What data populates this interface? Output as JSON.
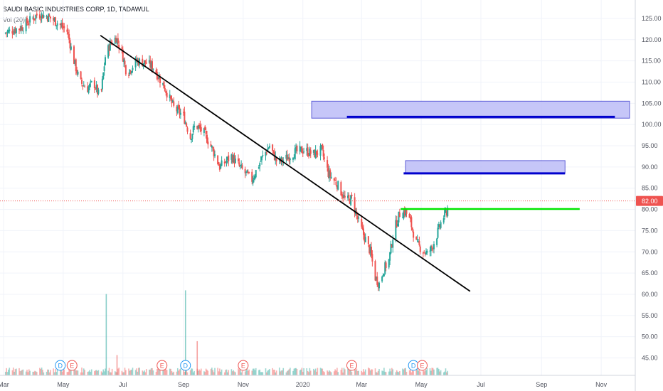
{
  "legend": {
    "title": "SAUDI BASIC INDUSTRIES CORP, 1D, TADAWUL",
    "volume_label": "Vol (20)"
  },
  "colors": {
    "up": "#26a69a",
    "down": "#ef5350",
    "trendline": "#000000",
    "zone_fill": "#bdbdf7",
    "zone_border": "#3f3fd0",
    "zone_line": "#0000cd",
    "resistance": "#00e600",
    "price_line": "#ef5350",
    "grid": "#f0f3fa",
    "axis_text": "#50535e"
  },
  "chart_data": {
    "type": "candlestick",
    "title": "SAUDI BASIC INDUSTRIES CORP, 1D, TADAWUL",
    "last_price": 82.0,
    "last_price_label": "82.00",
    "y_range": [
      40.5,
      127.5
    ],
    "y_ticks": [
      "125.00",
      "120.00",
      "115.00",
      "110.00",
      "105.00",
      "100.00",
      "95.00",
      "90.00",
      "85.00",
      "80.00",
      "75.00",
      "70.00",
      "65.00",
      "60.00",
      "55.00",
      "50.00",
      "45.00"
    ],
    "x_range": [
      "2019-03-01",
      "2020-11-30"
    ],
    "x_ticks": [
      {
        "label": "Mar",
        "date": "2019-03-01"
      },
      {
        "label": "May",
        "date": "2019-05-01"
      },
      {
        "label": "Jul",
        "date": "2019-07-01"
      },
      {
        "label": "Sep",
        "date": "2019-09-01"
      },
      {
        "label": "Nov",
        "date": "2019-11-01"
      },
      {
        "label": "2020",
        "date": "2020-01-01"
      },
      {
        "label": "Mar",
        "date": "2020-03-01"
      },
      {
        "label": "May",
        "date": "2020-05-01"
      },
      {
        "label": "Jul",
        "date": "2020-07-01"
      },
      {
        "label": "Sep",
        "date": "2020-09-01"
      },
      {
        "label": "Nov",
        "date": "2020-11-01"
      }
    ],
    "price_path": [
      [
        "2019-03-01",
        121.5
      ],
      [
        "2019-03-20",
        123.0
      ],
      [
        "2019-04-05",
        126.0
      ],
      [
        "2019-04-15",
        125.5
      ],
      [
        "2019-04-25",
        124.0
      ],
      [
        "2019-05-05",
        122.0
      ],
      [
        "2019-05-12",
        115.0
      ],
      [
        "2019-05-18",
        110.0
      ],
      [
        "2019-05-26",
        108.5
      ],
      [
        "2019-06-01",
        110.0
      ],
      [
        "2019-06-08",
        106.0
      ],
      [
        "2019-06-13",
        116.0
      ],
      [
        "2019-06-18",
        119.0
      ],
      [
        "2019-06-24",
        120.5
      ],
      [
        "2019-06-30",
        117.0
      ],
      [
        "2019-07-05",
        112.0
      ],
      [
        "2019-07-15",
        115.0
      ],
      [
        "2019-07-25",
        114.5
      ],
      [
        "2019-08-01",
        113.5
      ],
      [
        "2019-08-12",
        109.0
      ],
      [
        "2019-08-22",
        104.0
      ],
      [
        "2019-09-01",
        102.0
      ],
      [
        "2019-09-08",
        97.0
      ],
      [
        "2019-09-13",
        100.0
      ],
      [
        "2019-09-22",
        98.0
      ],
      [
        "2019-10-01",
        94.0
      ],
      [
        "2019-10-08",
        90.0
      ],
      [
        "2019-10-20",
        92.5
      ],
      [
        "2019-11-01",
        89.0
      ],
      [
        "2019-11-10",
        87.0
      ],
      [
        "2019-11-20",
        92.0
      ],
      [
        "2019-11-28",
        95.0
      ],
      [
        "2019-12-06",
        91.0
      ],
      [
        "2019-12-15",
        92.0
      ],
      [
        "2019-12-24",
        93.5
      ],
      [
        "2020-01-02",
        94.0
      ],
      [
        "2020-01-12",
        93.0
      ],
      [
        "2020-01-20",
        94.0
      ],
      [
        "2020-01-27",
        88.5
      ],
      [
        "2020-02-05",
        86.0
      ],
      [
        "2020-02-14",
        82.0
      ],
      [
        "2020-02-20",
        82.5
      ],
      [
        "2020-02-27",
        77.0
      ],
      [
        "2020-03-04",
        73.5
      ],
      [
        "2020-03-10",
        70.0
      ],
      [
        "2020-03-15",
        64.0
      ],
      [
        "2020-03-19",
        62.5
      ],
      [
        "2020-03-24",
        66.0
      ],
      [
        "2020-03-29",
        68.0
      ],
      [
        "2020-04-03",
        75.0
      ],
      [
        "2020-04-09",
        79.0
      ],
      [
        "2020-04-15",
        79.5
      ],
      [
        "2020-04-20",
        77.0
      ],
      [
        "2020-04-26",
        72.0
      ],
      [
        "2020-05-02",
        70.5
      ],
      [
        "2020-05-07",
        69.5
      ],
      [
        "2020-05-12",
        71.0
      ],
      [
        "2020-05-17",
        74.0
      ],
      [
        "2020-05-22",
        77.5
      ],
      [
        "2020-05-27",
        79.5
      ],
      [
        "2020-05-30",
        82.0
      ]
    ],
    "volume_spikes": [
      {
        "date": "2019-06-14",
        "rel": 0.88
      },
      {
        "date": "2019-06-25",
        "rel": 0.22
      },
      {
        "date": "2019-09-03",
        "rel": 0.92
      },
      {
        "date": "2019-09-15",
        "rel": 0.37
      }
    ],
    "trendline": {
      "from": [
        "2019-06-08",
        121.0
      ],
      "to": [
        "2020-06-20",
        60.7
      ]
    },
    "zones": [
      {
        "from": "2020-01-10",
        "to": "2020-11-30",
        "top": 105.5,
        "bottom": 101.5
      },
      {
        "from": "2020-04-15",
        "to": "2020-09-25",
        "top": 91.5,
        "bottom": 88.5
      }
    ],
    "zone_lines": [
      {
        "from": "2020-02-15",
        "to": "2020-11-15",
        "y": 101.8
      },
      {
        "from": "2020-04-13",
        "to": "2020-09-25",
        "y": 88.5
      }
    ],
    "resistance_line": {
      "from": "2020-04-10",
      "to": "2020-10-10",
      "y": 80.1
    },
    "events": [
      {
        "label": "D",
        "date": "2019-04-28",
        "color": "#2196f3"
      },
      {
        "label": "E",
        "date": "2019-05-10",
        "color": "#ef5350"
      },
      {
        "label": "E",
        "date": "2019-08-10",
        "color": "#ef5350"
      },
      {
        "label": "D",
        "date": "2019-09-03",
        "color": "#2196f3"
      },
      {
        "label": "E",
        "date": "2019-11-01",
        "color": "#ef5350"
      },
      {
        "label": "E",
        "date": "2020-02-20",
        "color": "#ef5350"
      },
      {
        "label": "D",
        "date": "2020-04-23",
        "color": "#2196f3"
      },
      {
        "label": "E",
        "date": "2020-05-02",
        "color": "#ef5350"
      }
    ]
  }
}
